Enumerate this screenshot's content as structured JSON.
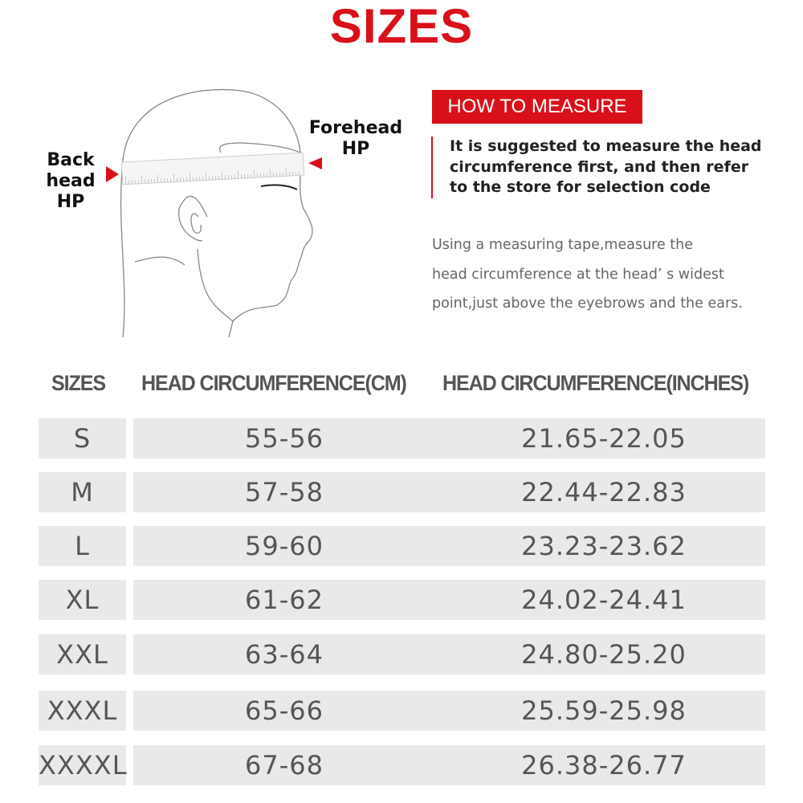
{
  "title": "SIZES",
  "illustration": {
    "back_label": [
      "Back",
      "head",
      "HP"
    ],
    "forehead_label": [
      "Forehead",
      "HP"
    ],
    "marker_color": "#d9101a"
  },
  "how_to_measure": {
    "badge": "HOW TO MEASURE",
    "suggestion": "It is suggested to measure the head circumference first, and then refer to the store for selection code",
    "description": [
      "Using a measuring tape,measure the",
      "head circumference at the head’ s widest",
      "point,just above the eyebrows and the ears."
    ]
  },
  "table": {
    "headers": [
      "SIZES",
      "HEAD CIRCUMFERENCE(CM)",
      "HEAD CIRCUMFERENCE(INCHES)"
    ],
    "rows": [
      {
        "size": "S",
        "cm": "55-56",
        "inches": "21.65-22.05"
      },
      {
        "size": "M",
        "cm": "57-58",
        "inches": "22.44-22.83"
      },
      {
        "size": "L",
        "cm": "59-60",
        "inches": "23.23-23.62"
      },
      {
        "size": "XL",
        "cm": "61-62",
        "inches": "24.02-24.41"
      },
      {
        "size": "XXL",
        "cm": "63-64",
        "inches": "24.80-25.20"
      },
      {
        "size": "XXXL",
        "cm": "65-66",
        "inches": "25.59-25.98"
      },
      {
        "size": "XXXXL",
        "cm": "67-68",
        "inches": "26.38-26.77"
      }
    ]
  },
  "colors": {
    "accent": "#d9101a",
    "cell_bg": "#e9e9e9",
    "text": "#555555"
  }
}
